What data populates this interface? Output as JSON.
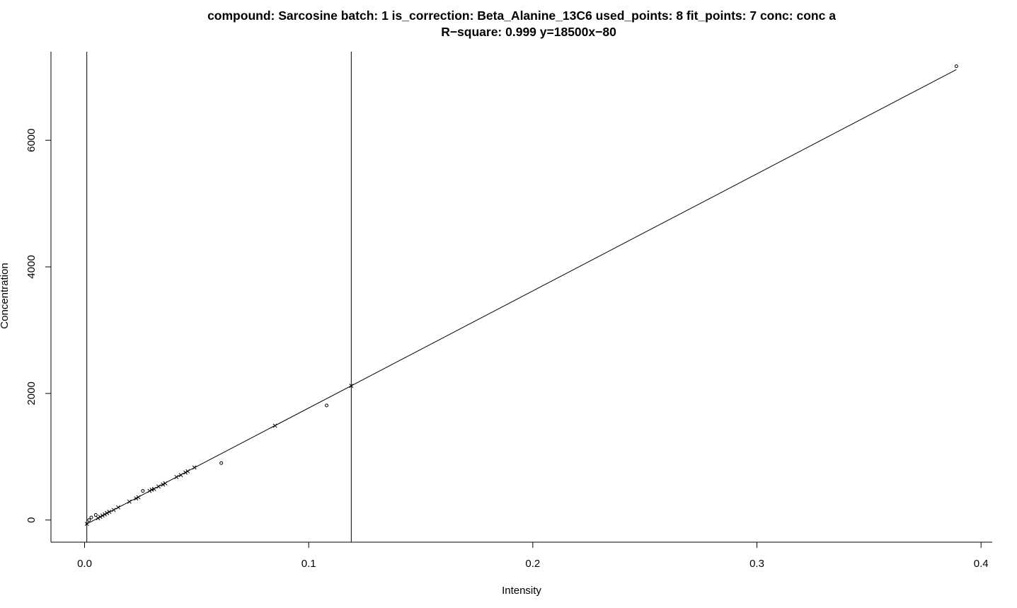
{
  "chart_data": {
    "type": "scatter",
    "title_line1": "compound: Sarcosine    batch: 1    is_correction: Beta_Alanine_13C6    used_points: 8    fit_points: 7    conc: conc a",
    "title_line2": "R−square: 0.999    y=18500x−80",
    "xlabel": "Intensity",
    "ylabel": "Concentration",
    "xlim": [
      -0.015,
      0.405
    ],
    "ylim": [
      -350,
      7400
    ],
    "xticks": [
      0.0,
      0.1,
      0.2,
      0.3,
      0.4
    ],
    "xtick_labels": [
      "0.0",
      "0.1",
      "0.2",
      "0.3",
      "0.4"
    ],
    "yticks": [
      0,
      2000,
      4000,
      6000
    ],
    "ytick_labels": [
      "0",
      "2000",
      "4000",
      "6000"
    ],
    "grid": false,
    "fit_line": {
      "slope": 18500,
      "intercept": -80,
      "x_range": [
        0.0005,
        0.389
      ]
    },
    "vertical_lines": [
      0.001,
      0.119
    ],
    "calibration_points": [
      {
        "x": 0.002,
        "y": 0
      },
      {
        "x": 0.003,
        "y": 40
      },
      {
        "x": 0.005,
        "y": 80
      },
      {
        "x": 0.026,
        "y": 460
      },
      {
        "x": 0.061,
        "y": 900
      },
      {
        "x": 0.108,
        "y": 1810
      },
      {
        "x": 0.389,
        "y": 7170
      }
    ],
    "sample_points": [
      {
        "x": 0.001,
        "y": -60
      },
      {
        "x": 0.006,
        "y": 30
      },
      {
        "x": 0.007,
        "y": 50
      },
      {
        "x": 0.008,
        "y": 70
      },
      {
        "x": 0.009,
        "y": 90
      },
      {
        "x": 0.01,
        "y": 110
      },
      {
        "x": 0.011,
        "y": 130
      },
      {
        "x": 0.013,
        "y": 160
      },
      {
        "x": 0.015,
        "y": 200
      },
      {
        "x": 0.02,
        "y": 290
      },
      {
        "x": 0.023,
        "y": 340
      },
      {
        "x": 0.024,
        "y": 360
      },
      {
        "x": 0.029,
        "y": 460
      },
      {
        "x": 0.03,
        "y": 480
      },
      {
        "x": 0.031,
        "y": 490
      },
      {
        "x": 0.033,
        "y": 530
      },
      {
        "x": 0.035,
        "y": 560
      },
      {
        "x": 0.036,
        "y": 580
      },
      {
        "x": 0.041,
        "y": 680
      },
      {
        "x": 0.043,
        "y": 710
      },
      {
        "x": 0.045,
        "y": 750
      },
      {
        "x": 0.046,
        "y": 770
      },
      {
        "x": 0.049,
        "y": 830
      },
      {
        "x": 0.085,
        "y": 1490
      },
      {
        "x": 0.119,
        "y": 2120
      }
    ]
  }
}
